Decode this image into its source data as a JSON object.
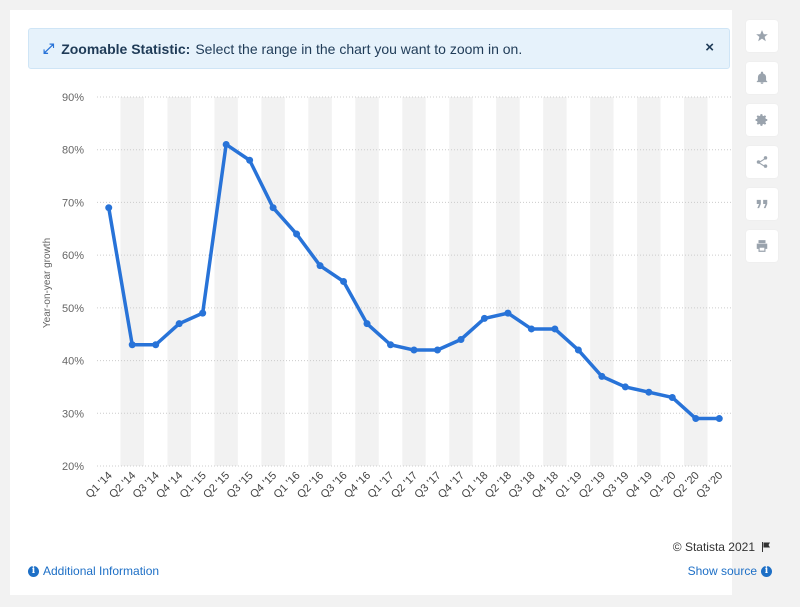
{
  "banner": {
    "title": "Zoomable Statistic:",
    "text": "Select the range in the chart you want to zoom in on.",
    "close": "×"
  },
  "sidebar": {
    "icons": [
      "star-icon",
      "bell-icon",
      "gear-icon",
      "share-icon",
      "quote-icon",
      "print-icon"
    ]
  },
  "footer": {
    "copyright": "© Statista 2021",
    "additional_info": "Additional Information",
    "show_source": "Show source"
  },
  "colors": {
    "line": "#2873d8",
    "stripe": "#f2f2f2",
    "grid": "#cccccc",
    "link": "#1d6fc6"
  },
  "chart_data": {
    "type": "line",
    "ylabel": "Year-on-year growth",
    "xlabel": "",
    "ylim": [
      20,
      90
    ],
    "yticks": [
      "20%",
      "30%",
      "40%",
      "50%",
      "60%",
      "70%",
      "80%",
      "90%"
    ],
    "categories": [
      "Q1 '14",
      "Q2 '14",
      "Q3 '14",
      "Q4 '14",
      "Q1 '15",
      "Q2 '15",
      "Q3 '15",
      "Q4 '15",
      "Q1 '16",
      "Q2 '16",
      "Q3 '16",
      "Q4 '16",
      "Q1 '17",
      "Q2 '17",
      "Q3 '17",
      "Q4 '17",
      "Q1 '18",
      "Q2 '18",
      "Q3 '18",
      "Q4 '18",
      "Q1 '19",
      "Q2 '19",
      "Q3 '19",
      "Q4 '19",
      "Q1 '20",
      "Q2 '20",
      "Q3 '20"
    ],
    "series": [
      {
        "values": [
          69,
          43,
          43,
          47,
          49,
          81,
          78,
          69,
          64,
          58,
          55,
          47,
          43,
          42,
          42,
          44,
          48,
          49,
          46,
          46,
          42,
          37,
          35,
          34,
          33,
          29,
          29
        ]
      }
    ],
    "grid": true
  }
}
